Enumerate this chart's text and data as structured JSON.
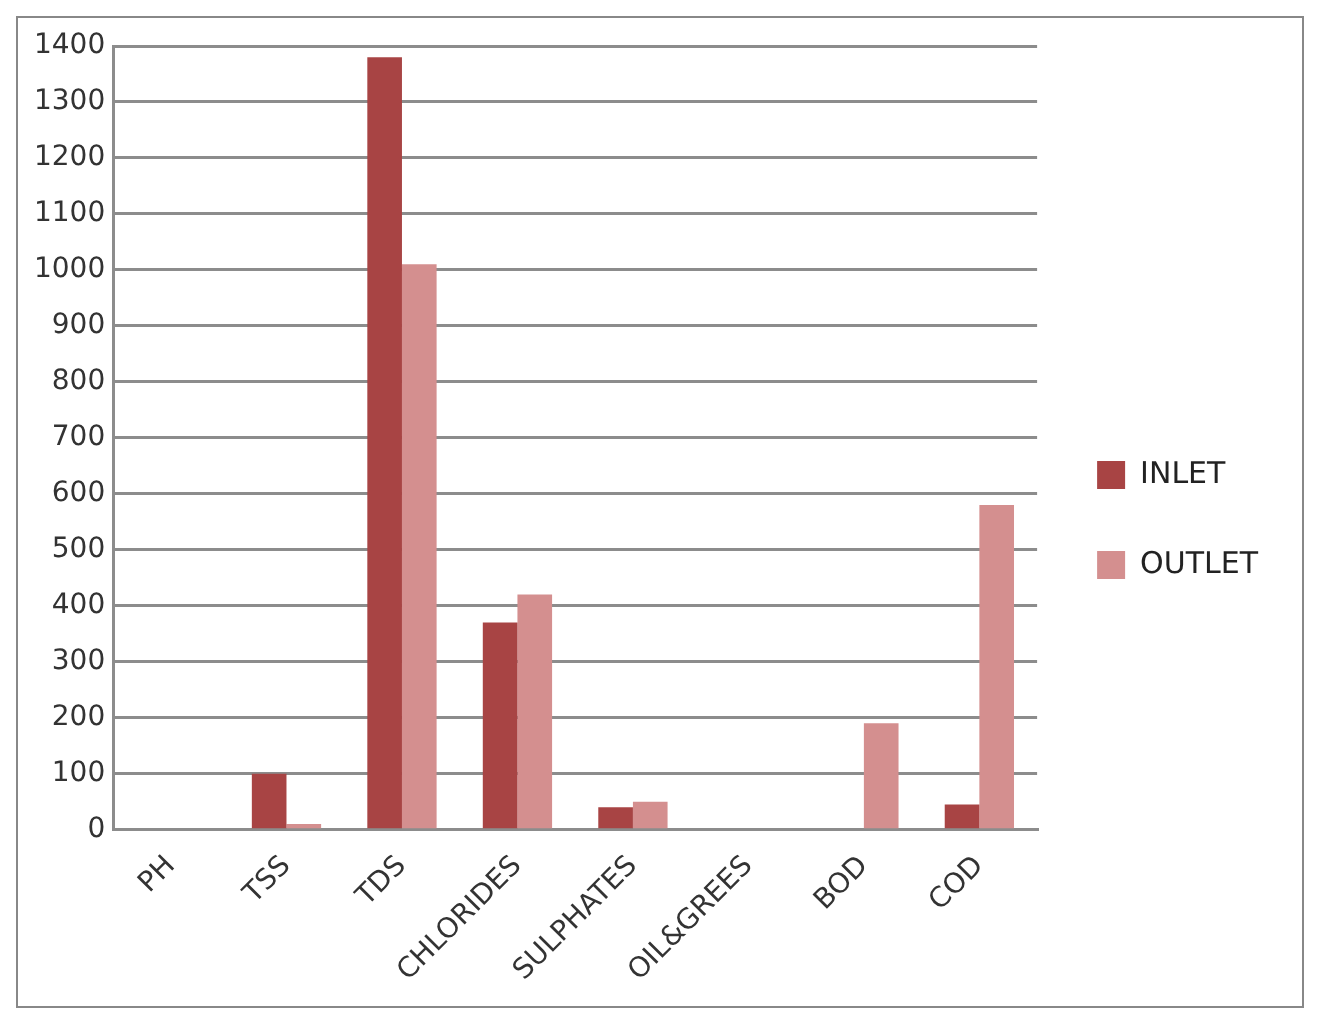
{
  "chart_data": {
    "type": "bar",
    "categories": [
      "PH",
      "TSS",
      "TDS",
      "CHLORIDES",
      "SULPHATES",
      "OIL&GREES",
      "BOD",
      "COD"
    ],
    "series": [
      {
        "name": "INLET",
        "color": "#a84444",
        "values": [
          null,
          100,
          1380,
          370,
          40,
          null,
          null,
          45
        ]
      },
      {
        "name": "OUTLET",
        "color": "#d48f8f",
        "values": [
          null,
          10,
          1010,
          420,
          50,
          null,
          190,
          580
        ]
      }
    ],
    "ylim": [
      0,
      1400
    ],
    "yticks": [
      0,
      100,
      200,
      300,
      400,
      500,
      600,
      700,
      800,
      900,
      1000,
      1100,
      1200,
      1300,
      1400
    ],
    "grid": "y",
    "legend": "right"
  }
}
